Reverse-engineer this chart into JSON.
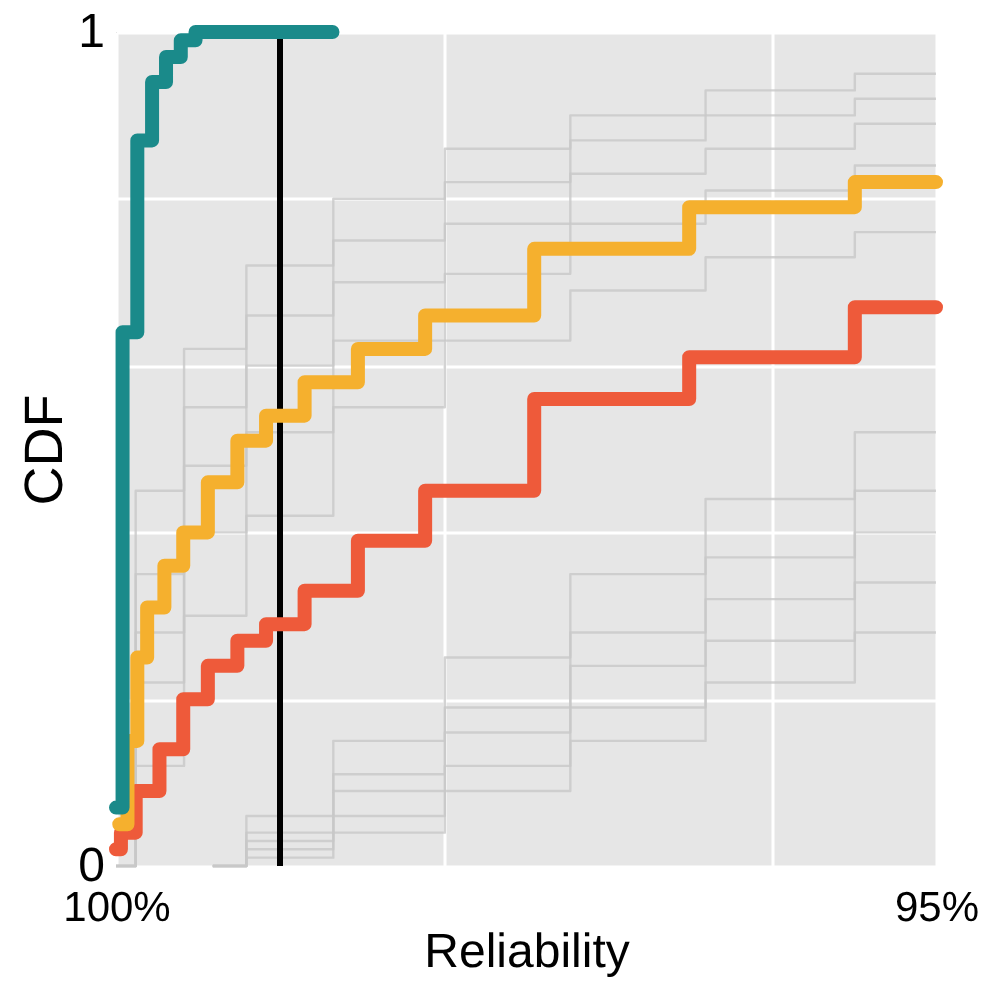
{
  "chart_data": {
    "type": "step",
    "xlabel": "Reliability",
    "ylabel": "CDF",
    "xlim": [
      100,
      95
    ],
    "xticks": [
      {
        "value": 100,
        "label": "100%"
      },
      {
        "value": 98,
        "label": null
      },
      {
        "value": 96,
        "label": null
      },
      {
        "value": 95,
        "label": "95%"
      }
    ],
    "ylim": [
      0,
      1
    ],
    "yticks": [
      0,
      {
        "value": 0.2,
        "label": null
      },
      {
        "value": 0.4,
        "label": null
      },
      {
        "value": 0.6,
        "label": null
      },
      {
        "value": 0.8,
        "label": null
      },
      1
    ],
    "grid": true,
    "ref_lines": [
      {
        "axis": "x",
        "value": 99,
        "color": "#000000"
      }
    ],
    "series": [
      {
        "color": "#c8c8c8",
        "x": [
          100,
          99.76,
          99.41,
          99.0,
          98.35,
          97.64,
          96.82,
          95.99,
          95.0
        ],
        "values": [
          0,
          0.45,
          0.62,
          0.72,
          0.8,
          0.86,
          0.9,
          0.93,
          0.95
        ]
      },
      {
        "color": "#c8c8c8",
        "x": [
          100,
          99.76,
          99.41,
          99.0,
          98.35,
          97.64,
          96.82,
          95.99,
          95.0
        ],
        "values": [
          0,
          0.35,
          0.55,
          0.66,
          0.75,
          0.82,
          0.87,
          0.9,
          0.92
        ]
      },
      {
        "color": "#c8c8c8",
        "x": [
          100,
          99.76,
          99.41,
          99.0,
          98.35,
          97.64,
          96.82,
          95.99,
          95.0
        ],
        "values": [
          0,
          0.28,
          0.48,
          0.6,
          0.7,
          0.77,
          0.83,
          0.86,
          0.89
        ]
      },
      {
        "color": "#c8c8c8",
        "x": [
          100,
          99.76,
          99.41,
          99.0,
          98.35,
          97.64,
          96.82,
          95.99,
          95.0
        ],
        "values": [
          0,
          0.22,
          0.4,
          0.52,
          0.63,
          0.71,
          0.77,
          0.81,
          0.84
        ]
      },
      {
        "color": "#c8c8c8",
        "x": [
          100,
          99.76,
          99.41,
          99.0,
          98.35,
          97.64,
          96.82,
          95.99,
          95.0
        ],
        "values": [
          0,
          0.12,
          0.3,
          0.42,
          0.55,
          0.63,
          0.69,
          0.73,
          0.76
        ]
      },
      {
        "color": "#c8c8c8",
        "x": [
          99.41,
          99.0,
          98.35,
          97.64,
          96.82,
          95.99,
          95.0
        ],
        "values": [
          0,
          0.06,
          0.15,
          0.25,
          0.35,
          0.44,
          0.52
        ]
      },
      {
        "color": "#c8c8c8",
        "x": [
          99.41,
          99.0,
          98.35,
          97.64,
          96.82,
          95.99,
          95.0
        ],
        "values": [
          0,
          0.04,
          0.11,
          0.19,
          0.28,
          0.37,
          0.45
        ]
      },
      {
        "color": "#c8c8c8",
        "x": [
          99.41,
          99.0,
          98.35,
          97.64,
          96.82,
          95.99,
          95.0
        ],
        "values": [
          0,
          0.03,
          0.09,
          0.16,
          0.24,
          0.32,
          0.4
        ]
      },
      {
        "color": "#c8c8c8",
        "x": [
          99.41,
          99.0,
          98.35,
          97.64,
          96.82,
          95.99,
          95.0
        ],
        "values": [
          0,
          0.02,
          0.06,
          0.12,
          0.19,
          0.27,
          0.34
        ]
      },
      {
        "color": "#c8c8c8",
        "x": [
          99.41,
          99.0,
          98.35,
          97.64,
          96.82,
          95.99,
          95.0
        ],
        "values": [
          0,
          0.01,
          0.04,
          0.09,
          0.15,
          0.22,
          0.28
        ]
      },
      {
        "color": "#ee5a3a",
        "x": [
          100,
          99.94,
          99.82,
          99.65,
          99.53,
          99.35,
          99.17,
          99.0,
          98.7,
          98.35,
          97.88,
          97.02,
          95.99,
          95.0
        ],
        "values": [
          0.02,
          0.04,
          0.09,
          0.14,
          0.2,
          0.24,
          0.27,
          0.29,
          0.33,
          0.39,
          0.45,
          0.56,
          0.61,
          0.67
        ]
      },
      {
        "color": "#f5b02e",
        "x": [
          99.98,
          99.88,
          99.86,
          99.76,
          99.65,
          99.53,
          99.35,
          99.17,
          99.0,
          98.7,
          98.35,
          97.88,
          97.02,
          95.99,
          95.0
        ],
        "values": [
          0.05,
          0.15,
          0.25,
          0.31,
          0.36,
          0.4,
          0.46,
          0.51,
          0.54,
          0.58,
          0.62,
          0.66,
          0.74,
          0.79,
          0.82
        ]
      },
      {
        "color": "#1a8a8a",
        "x": [
          100,
          99.92,
          99.82,
          99.74,
          99.65,
          99.56,
          99.47,
          98.68
        ],
        "values": [
          0.07,
          0.64,
          0.87,
          0.94,
          0.97,
          0.99,
          1,
          1
        ]
      }
    ]
  }
}
